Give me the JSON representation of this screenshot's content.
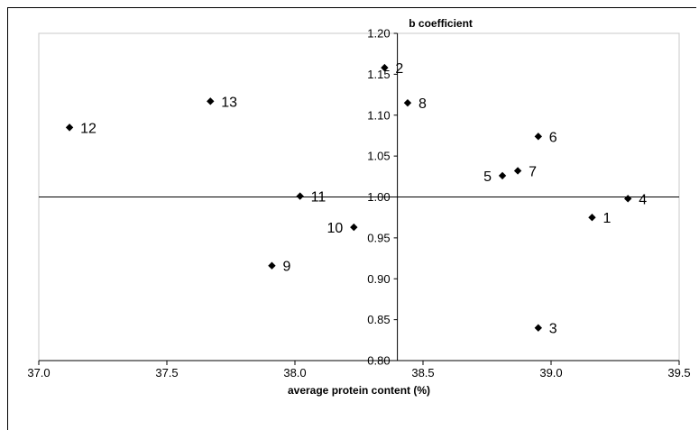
{
  "chart_data": {
    "type": "scatter",
    "xlabel": "average protein content (%)",
    "ylabel": "b coefficient",
    "xlim": [
      37.0,
      39.5
    ],
    "ylim": [
      0.8,
      1.2
    ],
    "x_ticks": [
      "37.0",
      "37.5",
      "38.0",
      "38.5",
      "39.0",
      "39.5"
    ],
    "y_ticks": [
      "0.80",
      "0.85",
      "0.90",
      "0.95",
      "1.00",
      "1.05",
      "1.10",
      "1.15",
      "1.20"
    ],
    "y_axis_crosses_x_at": 38.4,
    "x_axis_crosses_y_at": 1.0,
    "grid": false,
    "marker": "diamond",
    "points": [
      {
        "label": "1",
        "x": 39.16,
        "y": 0.975
      },
      {
        "label": "2",
        "x": 38.35,
        "y": 1.158
      },
      {
        "label": "3",
        "x": 38.95,
        "y": 0.84
      },
      {
        "label": "4",
        "x": 39.3,
        "y": 0.998
      },
      {
        "label": "5",
        "x": 38.81,
        "y": 1.026
      },
      {
        "label": "6",
        "x": 38.95,
        "y": 1.074
      },
      {
        "label": "7",
        "x": 38.87,
        "y": 1.032
      },
      {
        "label": "8",
        "x": 38.44,
        "y": 1.115
      },
      {
        "label": "9",
        "x": 37.91,
        "y": 0.916
      },
      {
        "label": "10",
        "x": 38.23,
        "y": 0.963
      },
      {
        "label": "11",
        "x": 38.02,
        "y": 1.001
      },
      {
        "label": "12",
        "x": 37.12,
        "y": 1.085
      },
      {
        "label": "13",
        "x": 37.67,
        "y": 1.117
      }
    ]
  }
}
